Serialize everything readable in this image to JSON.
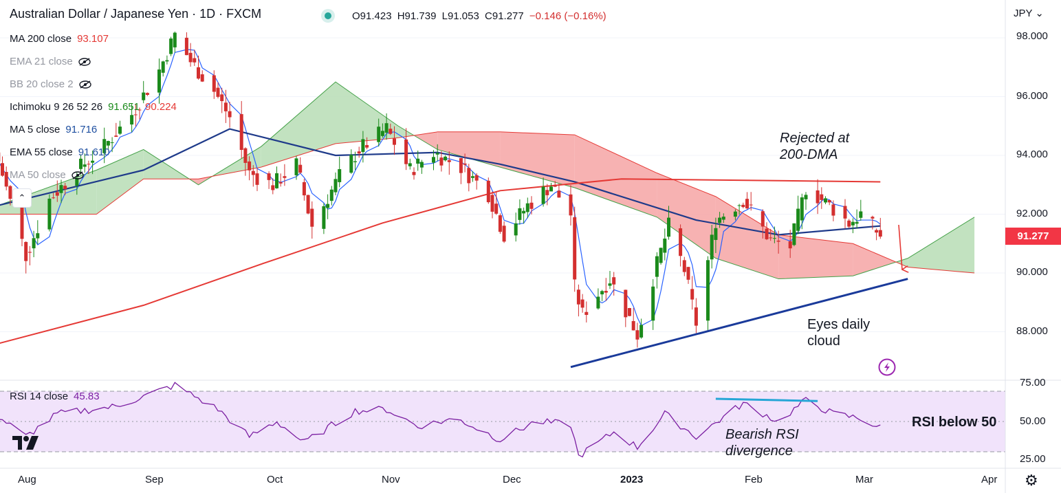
{
  "header": {
    "title": "Australian Dollar / Japanese Yen · 1D · FXCM",
    "open": "O91.423",
    "high": "H91.739",
    "low": "L91.053",
    "close": "C91.277",
    "change": "−0.146 (−0.16%)",
    "currency": "JPY"
  },
  "legend": [
    {
      "label": "MA 200 close",
      "value": "93.107",
      "color": "#e53935"
    },
    {
      "label": "EMA 21 close",
      "value": "",
      "hidden": true
    },
    {
      "label": "BB 20 close 2",
      "value": "",
      "hidden": true
    },
    {
      "label": "Ichimoku 9 26 52 26",
      "value": "91.651",
      "value2": "90.224",
      "color": "#1b8a1b",
      "color2": "#e53935"
    },
    {
      "label": "MA 5 close",
      "value": "91.716",
      "color": "#1e4fa0"
    },
    {
      "label": "EMA 55 close",
      "value": "91.610",
      "color": "#1e4fa0"
    },
    {
      "label": "MA 50 close",
      "value": "",
      "hidden": true
    }
  ],
  "price_axis": [
    "98.000",
    "96.000",
    "94.000",
    "92.000",
    "90.000",
    "88.000"
  ],
  "last_price": "91.277",
  "rsi": {
    "label": "RSI 14 close",
    "value": "45.83",
    "axis": [
      "75.00",
      "50.00",
      "25.00"
    ]
  },
  "time_axis": [
    "Aug",
    "Sep",
    "Oct",
    "Nov",
    "Dec",
    "2023",
    "Feb",
    "Mar",
    "Apr"
  ],
  "annotations": {
    "rejected": [
      "Rejected at",
      "200-DMA"
    ],
    "cloud": [
      "Eyes daily",
      "cloud"
    ],
    "rsi_div": [
      "Bearish RSI",
      "divergence"
    ],
    "rsi_below": "RSI below 50"
  },
  "colors": {
    "up": "#1b8a1b",
    "down": "#d32f2f",
    "ma200": "#e53935",
    "ema55": "#1e3a8a",
    "ma5": "#1e4fa0",
    "cloud_bull": "#b7ddb5",
    "cloud_bear": "#f6a4a4",
    "rsi": "#7b1fa2",
    "rsi_band": "#f1e3fb",
    "trendline": "#1a3a9a"
  },
  "chart_data": {
    "type": "candlestick",
    "symbol": "AUD/JPY",
    "timeframe": "1D",
    "ylim": [
      86.5,
      99.2
    ],
    "x_labels": [
      "Aug",
      "Sep",
      "Oct",
      "Nov",
      "Dec",
      "2023",
      "Feb",
      "Mar",
      "Apr"
    ],
    "waypoints": [
      [
        "2022-07-26",
        93.8
      ],
      [
        "2022-08-02",
        90.6
      ],
      [
        "2022-08-08",
        92.5
      ],
      [
        "2022-08-15",
        93.5
      ],
      [
        "2022-08-22",
        94.3
      ],
      [
        "2022-08-29",
        95.4
      ],
      [
        "2022-09-05",
        96.9
      ],
      [
        "2022-09-09",
        98.1
      ],
      [
        "2022-09-13",
        97.2
      ],
      [
        "2022-09-19",
        96.2
      ],
      [
        "2022-09-23",
        95.3
      ],
      [
        "2022-09-28",
        93.4
      ],
      [
        "2022-10-04",
        93.0
      ],
      [
        "2022-10-10",
        93.7
      ],
      [
        "2022-10-14",
        91.6
      ],
      [
        "2022-10-21",
        93.3
      ],
      [
        "2022-10-26",
        94.2
      ],
      [
        "2022-11-02",
        94.9
      ],
      [
        "2022-11-08",
        93.5
      ],
      [
        "2022-11-14",
        94.1
      ],
      [
        "2022-11-21",
        93.6
      ],
      [
        "2022-11-28",
        92.7
      ],
      [
        "2022-12-02",
        91.3
      ],
      [
        "2022-12-08",
        92.3
      ],
      [
        "2022-12-14",
        93.0
      ],
      [
        "2022-12-19",
        92.0
      ],
      [
        "2022-12-20",
        89.5
      ],
      [
        "2022-12-22",
        88.6
      ],
      [
        "2022-12-29",
        89.8
      ],
      [
        "2023-01-05",
        87.9
      ],
      [
        "2023-01-10",
        90.3
      ],
      [
        "2023-01-13",
        91.6
      ],
      [
        "2023-01-17",
        90.1
      ],
      [
        "2023-01-20",
        88.3
      ],
      [
        "2023-01-25",
        91.8
      ],
      [
        "2023-02-01",
        92.5
      ],
      [
        "2023-02-08",
        91.1
      ],
      [
        "2023-02-13",
        90.9
      ],
      [
        "2023-02-17",
        92.9
      ],
      [
        "2023-02-23",
        92.3
      ],
      [
        "2023-02-28",
        91.7
      ],
      [
        "2023-03-03",
        92.0
      ],
      [
        "2023-03-08",
        91.28
      ]
    ],
    "ma200": [
      [
        "2022-07-26",
        87.6
      ],
      [
        "2022-09-01",
        88.9
      ],
      [
        "2022-10-01",
        90.3
      ],
      [
        "2022-11-01",
        91.7
      ],
      [
        "2022-12-01",
        92.8
      ],
      [
        "2023-01-01",
        93.2
      ],
      [
        "2023-03-08",
        93.1
      ]
    ],
    "ema55": [
      [
        "2022-07-26",
        92.3
      ],
      [
        "2022-09-01",
        93.5
      ],
      [
        "2022-09-23",
        94.9
      ],
      [
        "2022-10-20",
        94.0
      ],
      [
        "2022-11-15",
        94.1
      ],
      [
        "2022-12-01",
        93.7
      ],
      [
        "2022-12-20",
        93.1
      ],
      [
        "2023-01-20",
        91.8
      ],
      [
        "2023-02-10",
        91.3
      ],
      [
        "2023-03-08",
        91.6
      ]
    ],
    "cloud": [
      {
        "date": "2022-07-26",
        "a": 92.3,
        "b": 92.0
      },
      {
        "date": "2022-08-20",
        "a": 93.5,
        "b": 92.0
      },
      {
        "date": "2022-09-01",
        "a": 94.2,
        "b": 93.2
      },
      {
        "date": "2022-09-15",
        "a": 93.0,
        "b": 93.2
      },
      {
        "date": "2022-10-01",
        "a": 94.3,
        "b": 93.6
      },
      {
        "date": "2022-10-20",
        "a": 96.5,
        "b": 94.4
      },
      {
        "date": "2022-11-05",
        "a": 95.0,
        "b": 94.6
      },
      {
        "date": "2022-11-15",
        "a": 94.2,
        "b": 94.8
      },
      {
        "date": "2022-12-01",
        "a": 93.6,
        "b": 94.8
      },
      {
        "date": "2022-12-20",
        "a": 92.9,
        "b": 94.7
      },
      {
        "date": "2023-01-10",
        "a": 91.9,
        "b": 93.4
      },
      {
        "date": "2023-01-25",
        "a": 90.5,
        "b": 92.6
      },
      {
        "date": "2023-02-10",
        "a": 89.8,
        "b": 91.3
      },
      {
        "date": "2023-03-01",
        "a": 89.9,
        "b": 91.0
      },
      {
        "date": "2023-03-15",
        "a": 90.5,
        "b": 90.2
      },
      {
        "date": "2023-04-01",
        "a": 91.9,
        "b": 90.0
      }
    ],
    "rsi": [
      [
        "2022-07-26",
        53
      ],
      [
        "2022-08-02",
        40
      ],
      [
        "2022-08-10",
        55
      ],
      [
        "2022-08-25",
        60
      ],
      [
        "2022-09-09",
        74
      ],
      [
        "2022-09-20",
        58
      ],
      [
        "2022-09-28",
        40
      ],
      [
        "2022-10-05",
        50
      ],
      [
        "2022-10-12",
        36
      ],
      [
        "2022-10-25",
        57
      ],
      [
        "2022-11-02",
        58
      ],
      [
        "2022-11-10",
        47
      ],
      [
        "2022-11-20",
        52
      ],
      [
        "2022-12-01",
        38
      ],
      [
        "2022-12-10",
        50
      ],
      [
        "2022-12-19",
        48
      ],
      [
        "2022-12-21",
        27
      ],
      [
        "2022-12-30",
        43
      ],
      [
        "2023-01-05",
        33
      ],
      [
        "2023-01-12",
        55
      ],
      [
        "2023-01-20",
        40
      ],
      [
        "2023-02-01",
        62
      ],
      [
        "2023-02-10",
        50
      ],
      [
        "2023-02-17",
        64
      ],
      [
        "2023-02-24",
        55
      ],
      [
        "2023-03-03",
        52
      ],
      [
        "2023-03-08",
        45.83
      ]
    ],
    "trendline": [
      [
        "2022-12-19",
        86.8
      ],
      [
        "2023-03-15",
        89.8
      ]
    ],
    "rsi_divergence_line": [
      [
        "2023-01-25",
        65
      ],
      [
        "2023-02-20",
        63.5
      ]
    ],
    "rsi_levels": [
      70,
      30
    ],
    "rsi_ylim": [
      20,
      80
    ]
  }
}
